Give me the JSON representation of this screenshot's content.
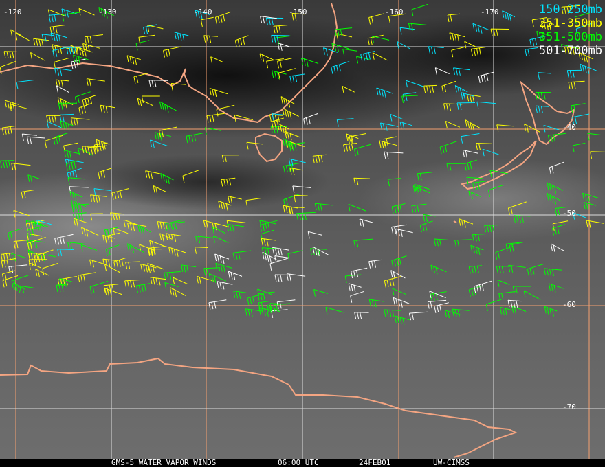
{
  "legend": [
    {
      "label": "150-250mb",
      "color": "#00e5ff"
    },
    {
      "label": "251-350mb",
      "color": "#ffff00"
    },
    {
      "label": "351-500mb",
      "color": "#00ff00"
    },
    {
      "label": "501-700mb",
      "color": "#ffffff"
    }
  ],
  "longitude_labels": [
    "-120",
    "-130",
    "-140",
    "-150",
    "-160",
    "-170"
  ],
  "latitude_labels": [
    "-40",
    "-50",
    "-60",
    "-70"
  ],
  "footer": {
    "product": "GMS-5 WATER VAPOR WINDS",
    "time": "06:00 UTC",
    "date": "24FEB01",
    "source": "UW-CIMSS"
  },
  "colors": {
    "coastline": "#f4a582",
    "grid_orange": "#f4a070",
    "grid_white": "#dddddd"
  }
}
